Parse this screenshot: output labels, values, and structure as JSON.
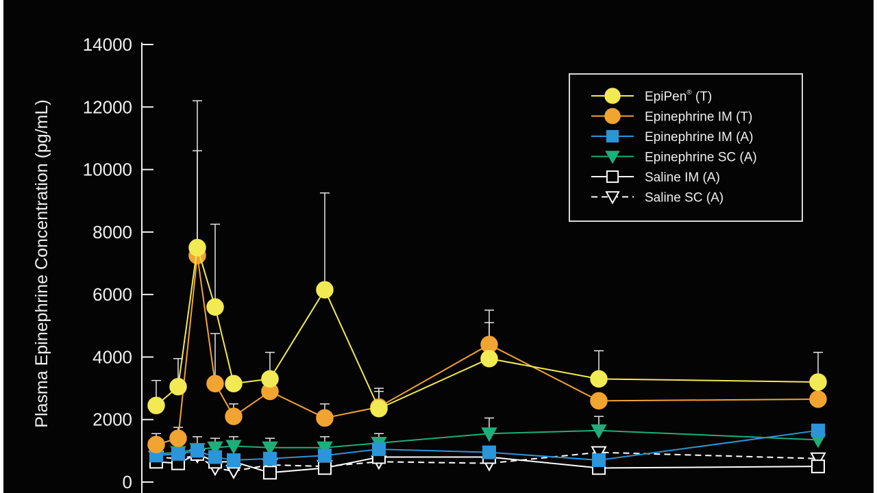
{
  "chart_data": {
    "type": "line",
    "ylabel": "Plasma Epinephrine Concentration (pg/mL)",
    "xlabel": "",
    "ylim": [
      0,
      14000
    ],
    "yticks": [
      0,
      2000,
      4000,
      6000,
      8000,
      10000,
      12000,
      14000
    ],
    "ytick_labels": [
      "0",
      "2000",
      "4000",
      "6000",
      "8000",
      "10000",
      "12000",
      "14000"
    ],
    "x_points": [
      0,
      1,
      2,
      3,
      4,
      5,
      6,
      7,
      8,
      9,
      10
    ],
    "legend_position": "top-right",
    "series": [
      {
        "name": "EpiPen",
        "name_suffix": "(T)",
        "trademark": "®",
        "color": "#f2ea52",
        "line_style": "solid",
        "marker": "circle-filled",
        "values": [
          2450,
          3050,
          7500,
          5600,
          3150,
          3300,
          6150,
          2350,
          3950,
          3300,
          3200
        ],
        "error_tops": [
          3250,
          3950,
          12200,
          8250,
          null,
          4150,
          9250,
          3000,
          5500,
          4200,
          4150
        ]
      },
      {
        "name": "Epinephrine IM (T)",
        "color": "#f2a431",
        "line_style": "solid",
        "marker": "circle-filled",
        "values": [
          1200,
          1400,
          7250,
          3150,
          2100,
          2900,
          2050,
          2400,
          4400,
          2600,
          2650
        ],
        "error_tops": [
          1550,
          1750,
          10600,
          4750,
          2500,
          null,
          2500,
          2900,
          5100,
          null,
          null
        ]
      },
      {
        "name": "Epinephrine IM (A)",
        "color": "#2a95d8",
        "line_style": "solid",
        "marker": "square-filled",
        "values": [
          850,
          900,
          1000,
          800,
          700,
          750,
          850,
          1050,
          950,
          700,
          1650
        ],
        "error_tops": [
          null,
          null,
          null,
          null,
          null,
          null,
          null,
          null,
          null,
          null,
          null
        ]
      },
      {
        "name": "Epinephrine SC (A)",
        "color": "#1fae7a",
        "line_style": "solid",
        "marker": "triangle-down-filled",
        "values": [
          900,
          950,
          1050,
          1100,
          1150,
          1100,
          1100,
          1250,
          1550,
          1650,
          1350
        ],
        "error_tops": [
          null,
          null,
          1450,
          1400,
          1450,
          1400,
          1450,
          1550,
          2050,
          2100,
          null
        ]
      },
      {
        "name": "Saline IM (A)",
        "color": "#ffffff",
        "line_style": "solid",
        "marker": "square-open",
        "values": [
          650,
          600,
          900,
          650,
          650,
          300,
          450,
          800,
          800,
          450,
          500
        ],
        "error_tops": [
          null,
          null,
          null,
          null,
          null,
          null,
          null,
          null,
          null,
          null,
          null
        ]
      },
      {
        "name": "Saline SC (A)",
        "color": "#ffffff",
        "line_style": "dashed",
        "marker": "triangle-down-open",
        "values": [
          800,
          750,
          850,
          450,
          350,
          550,
          500,
          650,
          600,
          950,
          750
        ],
        "error_tops": [
          null,
          null,
          null,
          null,
          null,
          null,
          null,
          null,
          null,
          null,
          null
        ]
      }
    ]
  }
}
